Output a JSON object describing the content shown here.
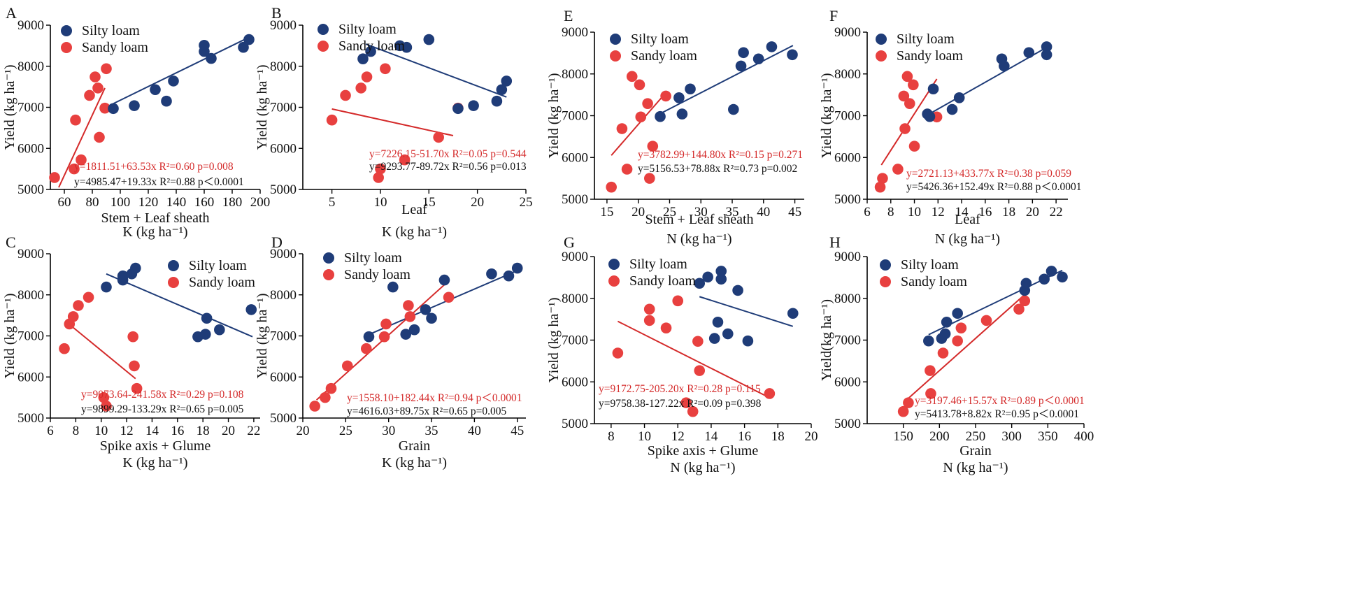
{
  "colors": {
    "silty": "#1f3c78",
    "sandy": "#e8403f",
    "silty_line": "#1f3c78",
    "sandy_line": "#d42a2a",
    "eq_red": "#d42a2a",
    "eq_black": "#111111"
  },
  "legend": {
    "silty": "Silty loam",
    "sandy": "Sandy loam"
  },
  "chart_data": [
    {
      "id": "A",
      "type": "scatter",
      "panel_label": "A",
      "xlabel": "Stem + Leaf sheath",
      "xunit_label": "K (kg ha⁻¹)",
      "ylabel": "Yield (kg ha⁻¹)",
      "xlim": [
        50,
        200
      ],
      "ylim": [
        5000,
        9000
      ],
      "xticks": [
        60,
        80,
        100,
        120,
        140,
        160,
        180,
        200
      ],
      "yticks": [
        5000,
        6000,
        7000,
        8000,
        9000
      ],
      "silty": [
        [
          95,
          6970
        ],
        [
          110,
          7040
        ],
        [
          125,
          7430
        ],
        [
          133,
          7150
        ],
        [
          138,
          7640
        ],
        [
          160,
          8360
        ],
        [
          160,
          8510
        ],
        [
          165,
          8190
        ],
        [
          188,
          8460
        ],
        [
          192,
          8650
        ]
      ],
      "sandy": [
        [
          53,
          5290
        ],
        [
          67,
          5500
        ],
        [
          68,
          6690
        ],
        [
          72,
          5720
        ],
        [
          78,
          7290
        ],
        [
          82,
          7740
        ],
        [
          84,
          7470
        ],
        [
          85,
          6270
        ],
        [
          89,
          6980
        ],
        [
          90,
          7940
        ]
      ],
      "fit_silty": [
        95,
        7090,
        193,
        8720
      ],
      "fit_sandy": [
        56,
        5050,
        89,
        7470
      ],
      "eq_sandy": "y=1811.51+63.53x  R²=0.60  p=0.008",
      "eq_silty": "y=4985.47+19.33x  R²=0.88  p＜0.0001"
    },
    {
      "id": "B",
      "type": "scatter",
      "panel_label": "B",
      "xlabel": "Leaf",
      "xunit_label": "K (kg ha⁻¹)",
      "ylabel": "Yield (kg ha⁻¹)",
      "xlim": [
        2,
        25
      ],
      "ylim": [
        5000,
        9000
      ],
      "xticks": [
        5,
        10,
        15,
        20,
        25
      ],
      "yticks": [
        5000,
        6000,
        7000,
        8000,
        9000
      ],
      "silty": [
        [
          8.2,
          8180
        ],
        [
          9,
          8360
        ],
        [
          12,
          8500
        ],
        [
          12.7,
          8460
        ],
        [
          15,
          8650
        ],
        [
          18,
          6970
        ],
        [
          19.6,
          7040
        ],
        [
          22,
          7150
        ],
        [
          22.5,
          7430
        ],
        [
          23,
          7640
        ]
      ],
      "sandy": [
        [
          5,
          6690
        ],
        [
          6.4,
          7290
        ],
        [
          8,
          7470
        ],
        [
          8.6,
          7740
        ],
        [
          9.8,
          5290
        ],
        [
          10,
          5500
        ],
        [
          10.5,
          7940
        ],
        [
          12.5,
          5720
        ],
        [
          16,
          6270
        ],
        [
          18,
          6980
        ]
      ],
      "fit_silty": [
        8.5,
        8540,
        23,
        7250
      ],
      "fit_sandy": [
        5,
        6960,
        17.5,
        6310
      ],
      "eq_sandy": "y=7226.15-51.70x  R²=0.05  p=0.544",
      "eq_silty": "y=9293.77-89.72x  R²=0.56  p=0.013"
    },
    {
      "id": "C",
      "type": "scatter",
      "panel_label": "C",
      "xlabel": "Spike axis + Glume",
      "xunit_label": "K (kg ha⁻¹)",
      "ylabel": "Yield (kg ha⁻¹)",
      "xlim": [
        6,
        22.5
      ],
      "ylim": [
        5000,
        9000
      ],
      "xticks": [
        6,
        8,
        10,
        12,
        14,
        16,
        18,
        20,
        22
      ],
      "yticks": [
        5000,
        6000,
        7000,
        8000,
        9000
      ],
      "silty": [
        [
          10.4,
          8190
        ],
        [
          11.7,
          8360
        ],
        [
          11.7,
          8460
        ],
        [
          12.4,
          8510
        ],
        [
          12.7,
          8650
        ],
        [
          17.6,
          6980
        ],
        [
          18.2,
          7040
        ],
        [
          18.3,
          7430
        ],
        [
          19.3,
          7150
        ],
        [
          21.8,
          7640
        ]
      ],
      "sandy": [
        [
          7.1,
          6690
        ],
        [
          7.5,
          7290
        ],
        [
          7.8,
          7470
        ],
        [
          8.2,
          7740
        ],
        [
          9,
          7940
        ],
        [
          10.2,
          5500
        ],
        [
          10.4,
          5290
        ],
        [
          12.5,
          6980
        ],
        [
          12.6,
          6270
        ],
        [
          12.8,
          5720
        ]
      ],
      "fit_silty": [
        10.4,
        8510,
        21.9,
        6980
      ],
      "fit_sandy": [
        7.3,
        7330,
        12.7,
        5960
      ],
      "eq_sandy": "y=9073.64-241.58x  R²=0.29  p=0.108",
      "eq_silty": "y=9899.29-133.29x  R²=0.65  p=0.005"
    },
    {
      "id": "D",
      "type": "scatter",
      "panel_label": "D",
      "xlabel": "Grain",
      "xunit_label": "K (kg ha⁻¹)",
      "ylabel": "Yield (kg ha⁻¹)",
      "xlim": [
        20,
        46
      ],
      "ylim": [
        5000,
        9000
      ],
      "xticks": [
        20,
        25,
        30,
        35,
        40,
        45
      ],
      "yticks": [
        5000,
        6000,
        7000,
        8000,
        9000
      ],
      "silty": [
        [
          27.7,
          6980
        ],
        [
          30.5,
          8190
        ],
        [
          32,
          7040
        ],
        [
          33,
          7150
        ],
        [
          34.3,
          7640
        ],
        [
          35,
          7430
        ],
        [
          36.5,
          8360
        ],
        [
          42,
          8510
        ],
        [
          44,
          8460
        ],
        [
          45,
          8650
        ]
      ],
      "sandy": [
        [
          21.4,
          5290
        ],
        [
          22.6,
          5500
        ],
        [
          23.3,
          5720
        ],
        [
          25.2,
          6270
        ],
        [
          27.4,
          6690
        ],
        [
          29.5,
          6980
        ],
        [
          29.7,
          7290
        ],
        [
          32.3,
          7740
        ],
        [
          32.5,
          7470
        ],
        [
          37,
          7940
        ]
      ],
      "fit_silty": [
        28,
        7060,
        45,
        8590
      ],
      "fit_sandy": [
        21.6,
        5440,
        37,
        8340
      ],
      "eq_sandy": "y=1558.10+182.44x  R²=0.94  p＜0.0001",
      "eq_silty": "y=4616.03+89.75x  R²=0.65  p=0.005"
    },
    {
      "id": "E",
      "type": "scatter",
      "panel_label": "E",
      "xlabel": "Stem + Leaf sheath",
      "xunit_label": "N (kg ha⁻¹)",
      "ylabel": "Yield (kg ha⁻¹)",
      "xlim": [
        13,
        46.5
      ],
      "ylim": [
        5000,
        9000
      ],
      "xticks": [
        15,
        20,
        25,
        30,
        35,
        40,
        45
      ],
      "yticks": [
        5000,
        6000,
        7000,
        8000,
        9000
      ],
      "silty": [
        [
          23.5,
          6980
        ],
        [
          26.5,
          7430
        ],
        [
          27,
          7040
        ],
        [
          28.3,
          7640
        ],
        [
          35.2,
          7150
        ],
        [
          36.4,
          8190
        ],
        [
          36.8,
          8510
        ],
        [
          39.2,
          8360
        ],
        [
          41.3,
          8650
        ],
        [
          44.6,
          8460
        ]
      ],
      "sandy": [
        [
          15.7,
          5290
        ],
        [
          17.4,
          6690
        ],
        [
          18.2,
          5720
        ],
        [
          19,
          7940
        ],
        [
          20.2,
          7740
        ],
        [
          20.4,
          6970
        ],
        [
          21.5,
          7290
        ],
        [
          21.8,
          5500
        ],
        [
          22.3,
          6270
        ],
        [
          24.4,
          7470
        ]
      ],
      "fit_silty": [
        23,
        7010,
        44.7,
        8680
      ],
      "fit_sandy": [
        15.7,
        6050,
        24.4,
        7550
      ],
      "eq_sandy": "y=3782.99+144.80x  R²=0.15  p=0.271",
      "eq_silty": "y=5156.53+78.88x  R²=0.73  p=0.002"
    },
    {
      "id": "F",
      "type": "scatter",
      "panel_label": "F",
      "xlabel": "Leaf",
      "xunit_label": "N (kg ha⁻¹)",
      "ylabel": "Yield (kg ha⁻¹)",
      "xlim": [
        6,
        23
      ],
      "ylim": [
        5000,
        9000
      ],
      "xticks": [
        6,
        8,
        10,
        12,
        14,
        16,
        18,
        20,
        22
      ],
      "yticks": [
        5000,
        6000,
        7000,
        8000,
        9000
      ],
      "silty": [
        [
          11.1,
          7040
        ],
        [
          11.3,
          6980
        ],
        [
          11.6,
          7640
        ],
        [
          13.2,
          7150
        ],
        [
          13.8,
          7430
        ],
        [
          17.4,
          8360
        ],
        [
          17.6,
          8190
        ],
        [
          19.7,
          8510
        ],
        [
          21.2,
          8650
        ],
        [
          21.2,
          8460
        ]
      ],
      "sandy": [
        [
          7.1,
          5290
        ],
        [
          7.3,
          5500
        ],
        [
          8.6,
          5720
        ],
        [
          9.1,
          7470
        ],
        [
          9.2,
          6690
        ],
        [
          9.4,
          7940
        ],
        [
          9.6,
          7290
        ],
        [
          9.9,
          7740
        ],
        [
          10,
          6270
        ],
        [
          11.9,
          6970
        ]
      ],
      "fit_silty": [
        11,
        7000,
        21.3,
        8650
      ],
      "fit_sandy": [
        7.2,
        5820,
        11.9,
        7880
      ],
      "eq_sandy": "y=2721.13+433.77x  R²=0.38  p=0.059",
      "eq_silty": "y=5426.36+152.49x  R²=0.88  p＜0.0001"
    },
    {
      "id": "G",
      "type": "scatter",
      "panel_label": "G",
      "xlabel": "Spike axis + Glume",
      "xunit_label": "N (kg ha⁻¹)",
      "ylabel": "Yield (kg ha⁻¹)",
      "xlim": [
        7,
        20
      ],
      "ylim": [
        5000,
        9000
      ],
      "xticks": [
        8,
        10,
        12,
        14,
        16,
        18,
        20
      ],
      "yticks": [
        5000,
        6000,
        7000,
        8000,
        9000
      ],
      "silty": [
        [
          13.3,
          8360
        ],
        [
          13.8,
          8510
        ],
        [
          14.2,
          7040
        ],
        [
          14.4,
          7430
        ],
        [
          14.6,
          8460
        ],
        [
          14.6,
          8650
        ],
        [
          15,
          7150
        ],
        [
          15.6,
          8190
        ],
        [
          16.2,
          6980
        ],
        [
          18.9,
          7640
        ]
      ],
      "sandy": [
        [
          8.4,
          6690
        ],
        [
          10.3,
          7740
        ],
        [
          10.3,
          7470
        ],
        [
          11.3,
          7290
        ],
        [
          12,
          7940
        ],
        [
          12.5,
          5500
        ],
        [
          12.9,
          5290
        ],
        [
          13.2,
          6970
        ],
        [
          13.3,
          6270
        ],
        [
          17.5,
          5720
        ]
      ],
      "fit_silty": [
        13.3,
        8040,
        18.9,
        7330
      ],
      "fit_sandy": [
        8.4,
        7450,
        17.6,
        5600
      ],
      "eq_sandy": "y=9172.75-205.20x  R²=0.28  p=0.115",
      "eq_silty": "y=9758.38-127.22x  R²=0.09  p=0.398"
    },
    {
      "id": "H",
      "type": "scatter",
      "panel_label": "H",
      "xlabel": "Grain",
      "xunit_label": "N (kg ha⁻¹)",
      "ylabel": "Yield(kg ha⁻¹)",
      "xlim": [
        100,
        400
      ],
      "ylim": [
        5000,
        9000
      ],
      "xticks": [
        150,
        200,
        250,
        300,
        350,
        400
      ],
      "yticks": [
        5000,
        6000,
        7000,
        8000,
        9000
      ],
      "silty": [
        [
          185,
          6980
        ],
        [
          203,
          7040
        ],
        [
          208,
          7150
        ],
        [
          210,
          7430
        ],
        [
          225,
          7640
        ],
        [
          318,
          8190
        ],
        [
          320,
          8360
        ],
        [
          345,
          8460
        ],
        [
          355,
          8650
        ],
        [
          370,
          8510
        ]
      ],
      "sandy": [
        [
          150,
          5290
        ],
        [
          157,
          5500
        ],
        [
          187,
          6270
        ],
        [
          188,
          5720
        ],
        [
          205,
          6690
        ],
        [
          225,
          6980
        ],
        [
          230,
          7290
        ],
        [
          265,
          7470
        ],
        [
          310,
          7740
        ],
        [
          318,
          7940
        ]
      ],
      "fit_silty": [
        185,
        7130,
        370,
        8670
      ],
      "fit_sandy": [
        152,
        5530,
        318,
        8090
      ],
      "eq_sandy": "y=3197.46+15.57x  R²=0.89  p＜0.0001",
      "eq_silty": "y=5413.78+8.82x  R²=0.95  p＜0.0001"
    }
  ]
}
